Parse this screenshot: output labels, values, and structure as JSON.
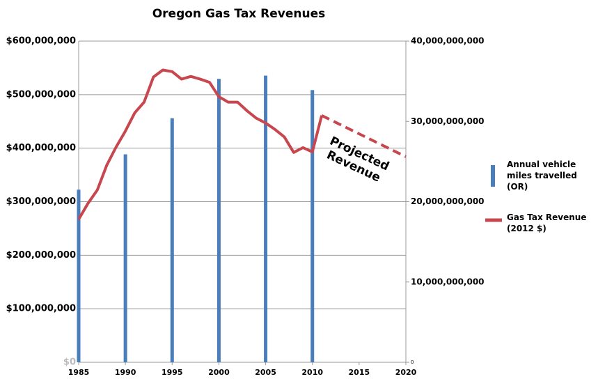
{
  "chart_data": {
    "type": "bar_line",
    "title": "Oregon Gas Tax Revenues",
    "xlim": [
      1985,
      2020
    ],
    "xticks": [
      1985,
      1990,
      1995,
      2000,
      2005,
      2010,
      2015,
      2020
    ],
    "ylim": [
      0,
      600000000
    ],
    "yticks": [
      {
        "value": 0,
        "label": "$0"
      },
      {
        "value": 100000000,
        "label": "$100,000,000"
      },
      {
        "value": 200000000,
        "label": "$200,000,000"
      },
      {
        "value": 300000000,
        "label": "$300,000,000"
      },
      {
        "value": 400000000,
        "label": "$400,000,000"
      },
      {
        "value": 500000000,
        "label": "$500,000,000"
      },
      {
        "value": 600000000,
        "label": "$600,000,000"
      }
    ],
    "y2lim": [
      0,
      40000000000
    ],
    "y2ticks": [
      0,
      {
        "value": 10000000000,
        "label": "10,000,000,000"
      },
      {
        "value": 20000000000,
        "label": "20,000,000,000"
      },
      {
        "value": 30000000000,
        "label": "30,000,000,000"
      },
      {
        "value": 40000000000,
        "label": "40,000,000,000"
      }
    ],
    "grid": true,
    "series": [
      {
        "name": "Annual vehicle miles travelled (OR)",
        "type": "bar",
        "axis": "y2",
        "color": "#4a7ebb",
        "x": [
          1985,
          1990,
          1995,
          2000,
          2005,
          2010
        ],
        "values": [
          21500000000,
          25900000000,
          30400000000,
          35300000000,
          35700000000,
          33900000000
        ]
      },
      {
        "name": "Gas Tax Revenue (2012 $)",
        "type": "line",
        "color": "#c8474f",
        "x": [
          1985,
          1986,
          1987,
          1988,
          1989,
          1990,
          1991,
          1992,
          1993,
          1994,
          1995,
          1996,
          1997,
          1998,
          1999,
          2000,
          2001,
          2002,
          2003,
          2004,
          2005,
          2006,
          2007,
          2008,
          2009,
          2010,
          2011
        ],
        "values": [
          267000000,
          297000000,
          322000000,
          368000000,
          402000000,
          432000000,
          466000000,
          486000000,
          533000000,
          546000000,
          543000000,
          529000000,
          534000000,
          529000000,
          523000000,
          496000000,
          486000000,
          486000000,
          470000000,
          456000000,
          447000000,
          435000000,
          421000000,
          392000000,
          401000000,
          393000000,
          461000000
        ]
      }
    ],
    "projection": {
      "label": "Projected Revenue",
      "color": "#c8474f",
      "x": [
        2011,
        2020
      ],
      "values": [
        461000000,
        384000000
      ]
    }
  }
}
